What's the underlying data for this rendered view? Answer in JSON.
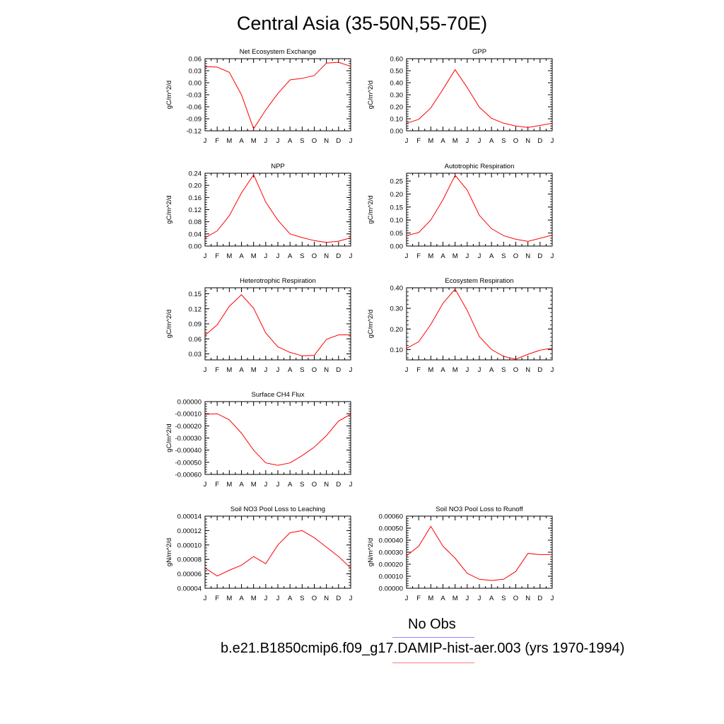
{
  "title": "Central Asia (35-50N,55-70E)",
  "colors": {
    "series": "#ff0000",
    "obs_line": "#8a8aff",
    "run_line": "#ff7a7a"
  },
  "legend": {
    "obs_label": "No Obs",
    "run_label": "b.e21.B1850cmip6.f09_g17.DAMIP-hist-aer.003 (yrs 1970-1994)"
  },
  "chart_data": [
    {
      "type": "line",
      "title": "Net Ecosystem Exchange",
      "ylabel": "gC/m^2/d",
      "categories": [
        "J",
        "F",
        "M",
        "A",
        "M",
        "J",
        "J",
        "A",
        "S",
        "O",
        "N",
        "D",
        "J"
      ],
      "ylim": [
        -0.12,
        0.06
      ],
      "yticks": [
        "0.06",
        "0.03",
        "0.00",
        "-0.03",
        "-0.06",
        "-0.09",
        "-0.12"
      ],
      "ytick_values": [
        0.06,
        0.03,
        0.0,
        -0.03,
        -0.06,
        -0.09,
        -0.12
      ],
      "values": [
        0.04,
        0.039,
        0.026,
        -0.03,
        -0.115,
        -0.068,
        -0.027,
        0.007,
        0.011,
        0.018,
        0.049,
        0.051,
        0.041
      ]
    },
    {
      "type": "line",
      "title": "GPP",
      "ylabel": "gC/m^2/d",
      "categories": [
        "J",
        "F",
        "M",
        "A",
        "M",
        "J",
        "J",
        "A",
        "S",
        "O",
        "N",
        "D",
        "J"
      ],
      "ylim": [
        0.0,
        0.6
      ],
      "yticks": [
        "0.60",
        "0.50",
        "0.40",
        "0.30",
        "0.20",
        "0.10",
        "0.00"
      ],
      "ytick_values": [
        0.6,
        0.5,
        0.4,
        0.3,
        0.2,
        0.1,
        0.0
      ],
      "values": [
        0.063,
        0.095,
        0.19,
        0.345,
        0.508,
        0.36,
        0.195,
        0.104,
        0.063,
        0.04,
        0.028,
        0.044,
        0.063
      ]
    },
    {
      "type": "line",
      "title": "NPP",
      "ylabel": "gC/m^2/d",
      "categories": [
        "J",
        "F",
        "M",
        "A",
        "M",
        "J",
        "J",
        "A",
        "S",
        "O",
        "N",
        "D",
        "J"
      ],
      "ylim": [
        0.0,
        0.24
      ],
      "yticks": [
        "0.24",
        "0.20",
        "0.16",
        "0.12",
        "0.08",
        "0.04",
        "0.00"
      ],
      "ytick_values": [
        0.24,
        0.2,
        0.16,
        0.12,
        0.08,
        0.04,
        0.0
      ],
      "values": [
        0.027,
        0.05,
        0.1,
        0.175,
        0.235,
        0.145,
        0.085,
        0.04,
        0.028,
        0.018,
        0.012,
        0.016,
        0.027
      ]
    },
    {
      "type": "line",
      "title": "Autotrophic Respiration",
      "ylabel": "gC/m^2/d",
      "categories": [
        "J",
        "F",
        "M",
        "A",
        "M",
        "J",
        "J",
        "A",
        "S",
        "O",
        "N",
        "D",
        "J"
      ],
      "ylim": [
        0.0,
        0.28
      ],
      "yticks": [
        "0.25",
        "0.20",
        "0.15",
        "0.10",
        "0.05",
        "0.00"
      ],
      "ytick_values": [
        0.25,
        0.2,
        0.15,
        0.1,
        0.05,
        0.0
      ],
      "values": [
        0.04,
        0.052,
        0.1,
        0.178,
        0.272,
        0.215,
        0.118,
        0.067,
        0.04,
        0.026,
        0.018,
        0.03,
        0.042
      ]
    },
    {
      "type": "line",
      "title": "Heterotrophic Respiration",
      "ylabel": "gC/m^2/d",
      "categories": [
        "J",
        "F",
        "M",
        "A",
        "M",
        "J",
        "J",
        "A",
        "S",
        "O",
        "N",
        "D",
        "J"
      ],
      "ylim": [
        0.018,
        0.162
      ],
      "yticks": [
        "0.15",
        "0.12",
        "0.09",
        "0.06",
        "0.03"
      ],
      "ytick_values": [
        0.15,
        0.12,
        0.09,
        0.06,
        0.03
      ],
      "values": [
        0.067,
        0.088,
        0.125,
        0.148,
        0.121,
        0.072,
        0.044,
        0.033,
        0.026,
        0.027,
        0.059,
        0.068,
        0.068
      ]
    },
    {
      "type": "line",
      "title": "Ecosystem Respiration",
      "ylabel": "gC/m^2/d",
      "categories": [
        "J",
        "F",
        "M",
        "A",
        "M",
        "J",
        "J",
        "A",
        "S",
        "O",
        "N",
        "D",
        "J"
      ],
      "ylim": [
        0.05,
        0.4
      ],
      "yticks": [
        "0.40",
        "0.30",
        "0.20",
        "0.10"
      ],
      "ytick_values": [
        0.4,
        0.3,
        0.2,
        0.1
      ],
      "values": [
        0.106,
        0.138,
        0.222,
        0.325,
        0.393,
        0.29,
        0.163,
        0.1,
        0.067,
        0.053,
        0.077,
        0.097,
        0.107
      ]
    },
    {
      "type": "line",
      "title": "Surface CH4 Flux",
      "ylabel": "gC/m^2/d",
      "categories": [
        "J",
        "F",
        "M",
        "A",
        "M",
        "J",
        "J",
        "A",
        "S",
        "O",
        "N",
        "D",
        "J"
      ],
      "ylim": [
        -0.0006,
        0.0
      ],
      "yticks": [
        "0.00000",
        "-0.00010",
        "-0.00020",
        "-0.00030",
        "-0.00040",
        "-0.00050",
        "-0.00060"
      ],
      "ytick_values": [
        0.0,
        -0.0001,
        -0.0002,
        -0.0003,
        -0.0004,
        -0.0005,
        -0.0006
      ],
      "values": [
        -0.000105,
        -0.0001,
        -0.00015,
        -0.00026,
        -0.0004,
        -0.000505,
        -0.000525,
        -0.000505,
        -0.000445,
        -0.000375,
        -0.00028,
        -0.00016,
        -0.000105
      ]
    },
    {
      "type": "line",
      "title": "Soil NO3 Pool Loss to Leaching",
      "ylabel": "gN/m^2/d",
      "categories": [
        "J",
        "F",
        "M",
        "A",
        "M",
        "J",
        "J",
        "A",
        "S",
        "O",
        "N",
        "D",
        "J"
      ],
      "ylim": [
        4e-05,
        0.00014
      ],
      "yticks": [
        "0.00014",
        "0.00012",
        "0.00010",
        "0.00008",
        "0.00006",
        "0.00004"
      ],
      "ytick_values": [
        0.00014,
        0.00012,
        0.0001,
        8e-05,
        6e-05,
        4e-05
      ],
      "values": [
        6.8e-05,
        5.7e-05,
        6.5e-05,
        7.2e-05,
        8.4e-05,
        7.4e-05,
        0.0001,
        0.000117,
        0.00012,
        0.00011,
        9.7e-05,
        8.4e-05,
        6.8e-05
      ]
    },
    {
      "type": "line",
      "title": "Soil NO3 Pool Loss to Runoff",
      "ylabel": "gN/m^2/d",
      "categories": [
        "J",
        "F",
        "M",
        "A",
        "M",
        "J",
        "J",
        "A",
        "S",
        "O",
        "N",
        "D",
        "J"
      ],
      "ylim": [
        0.0,
        0.0006
      ],
      "yticks": [
        "0.00060",
        "0.00050",
        "0.00040",
        "0.00030",
        "0.00020",
        "0.00010",
        "0.00000"
      ],
      "ytick_values": [
        0.0006,
        0.0005,
        0.0004,
        0.0003,
        0.0002,
        0.0001,
        0.0
      ],
      "values": [
        0.00027,
        0.00035,
        0.000515,
        0.00035,
        0.00025,
        0.000125,
        7.5e-05,
        6.5e-05,
        7.5e-05,
        0.00014,
        0.00029,
        0.00028,
        0.00028
      ]
    }
  ]
}
